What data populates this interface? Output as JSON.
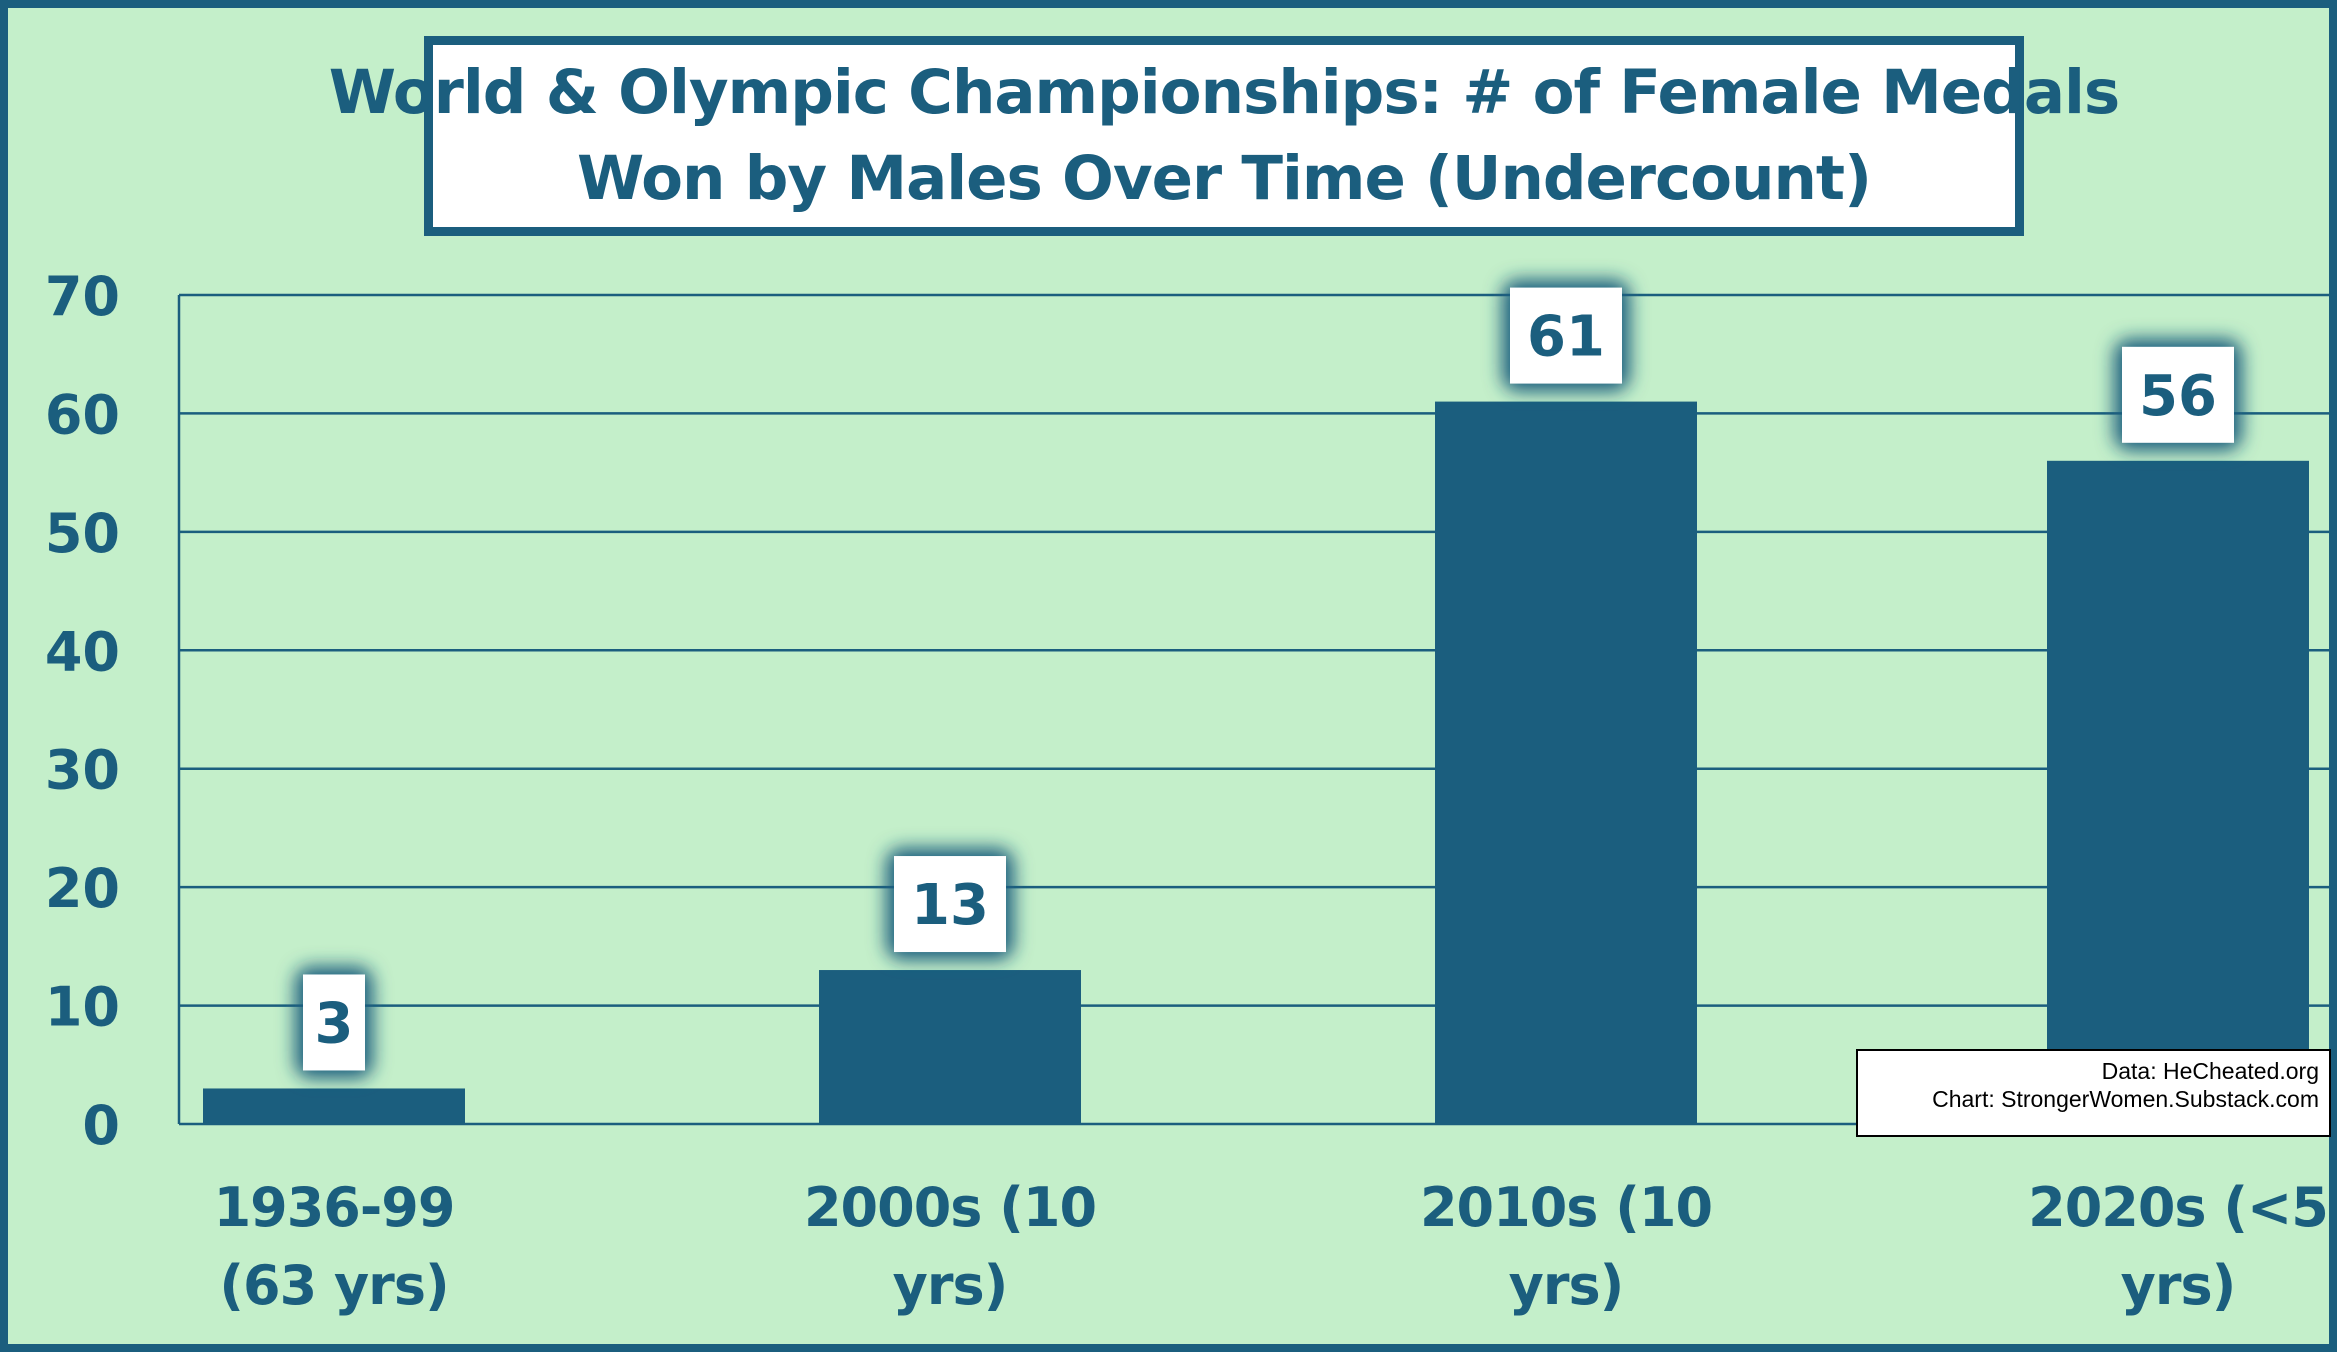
{
  "colors": {
    "background": "#c4efca",
    "bar": "#1b5e7e",
    "axis_text": "#1b5e7e",
    "label_box": "#ffffff"
  },
  "chart_data": {
    "type": "bar",
    "title_lines": [
      "World & Olympic Championships: # of Female Medals",
      "Won by Males Over Time (Undercount)"
    ],
    "categories": [
      [
        "1936-99",
        "(63 yrs)"
      ],
      [
        "2000s (10",
        "yrs)"
      ],
      [
        "2010s (10",
        "yrs)"
      ],
      [
        "2020s (<5",
        "yrs)"
      ]
    ],
    "values": [
      3,
      13,
      61,
      56
    ],
    "data_labels": [
      "3",
      "13",
      "61",
      "56"
    ],
    "ylim": [
      0,
      70
    ],
    "yticks": [
      0,
      10,
      20,
      30,
      40,
      50,
      60,
      70
    ],
    "grid": true,
    "legend": "none",
    "xlabel": "",
    "ylabel": ""
  },
  "credits": {
    "data_line": "Data: HeCheated.org",
    "chart_line": "Chart: StrongerWomen.Substack.com"
  }
}
